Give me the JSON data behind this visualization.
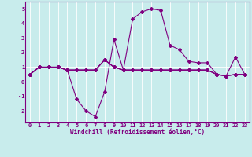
{
  "background_color": "#c8ecec",
  "line_color": "#800080",
  "grid_color": "#ffffff",
  "x_hours": [
    0,
    1,
    2,
    3,
    4,
    5,
    6,
    7,
    8,
    9,
    10,
    11,
    12,
    13,
    14,
    15,
    16,
    17,
    18,
    19,
    20,
    21,
    22,
    23
  ],
  "series1": [
    0.5,
    1.0,
    1.0,
    1.0,
    0.8,
    -1.2,
    -2.0,
    -2.4,
    -0.7,
    2.9,
    0.8,
    4.3,
    4.8,
    5.0,
    4.9,
    2.5,
    2.2,
    1.4,
    1.3,
    1.3,
    0.5,
    0.4,
    1.7,
    0.5
  ],
  "series2": [
    0.5,
    1.0,
    1.0,
    1.0,
    0.8,
    0.8,
    0.8,
    0.8,
    1.5,
    1.0,
    0.8,
    0.8,
    0.8,
    0.8,
    0.8,
    0.8,
    0.8,
    0.8,
    0.8,
    0.8,
    0.5,
    0.4,
    0.5,
    0.5
  ],
  "series3": [
    0.5,
    1.0,
    1.0,
    1.0,
    0.8,
    0.8,
    0.8,
    0.8,
    1.5,
    1.0,
    0.8,
    0.8,
    0.8,
    0.8,
    0.8,
    0.8,
    0.8,
    0.8,
    0.8,
    0.8,
    0.5,
    0.4,
    0.5,
    0.5
  ],
  "series4": [
    0.5,
    1.0,
    1.0,
    1.0,
    0.8,
    0.8,
    0.8,
    0.8,
    1.5,
    1.0,
    0.8,
    0.8,
    0.8,
    0.8,
    0.8,
    0.8,
    0.8,
    0.8,
    0.8,
    0.8,
    0.5,
    0.4,
    0.5,
    0.5
  ],
  "ylim": [
    -2.8,
    5.5
  ],
  "xlim": [
    -0.5,
    23.5
  ],
  "yticks": [
    -2,
    -1,
    0,
    1,
    2,
    3,
    4,
    5
  ],
  "xticks": [
    0,
    1,
    2,
    3,
    4,
    5,
    6,
    7,
    8,
    9,
    10,
    11,
    12,
    13,
    14,
    15,
    16,
    17,
    18,
    19,
    20,
    21,
    22,
    23
  ],
  "xlabel": "Windchill (Refroidissement éolien,°C)"
}
